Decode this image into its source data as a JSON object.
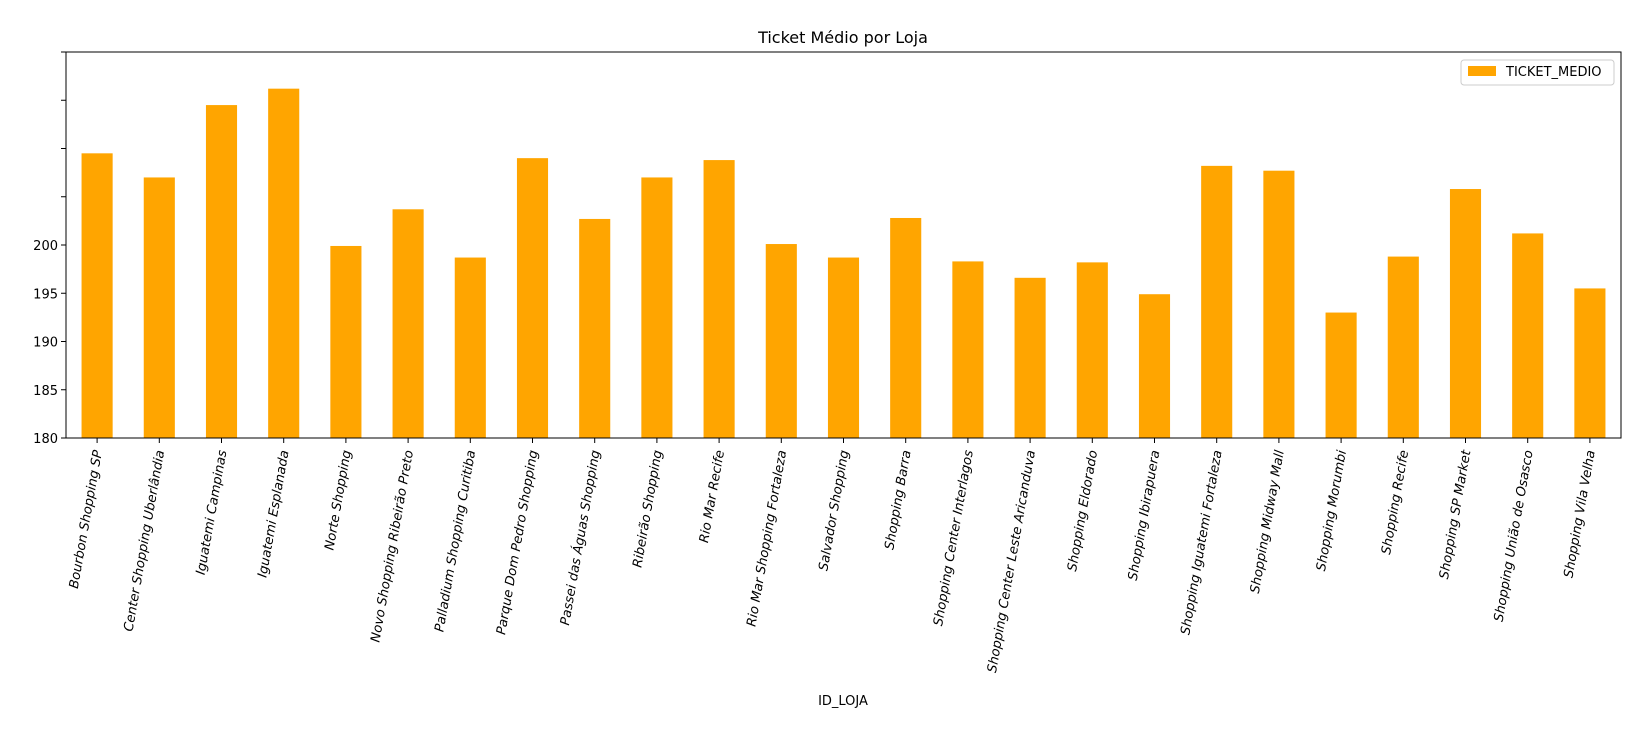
{
  "chart_data": {
    "type": "bar",
    "title": "Ticket Médio por Loja",
    "xlabel": "ID_LOJA",
    "ylabel": "",
    "ylim": [
      180,
      220
    ],
    "yticks": [
      180,
      185,
      190,
      195,
      200
    ],
    "yticks_unlabeled": [
      205,
      210,
      215,
      220
    ],
    "grid": false,
    "legend_position": "top-right",
    "bar_color": "#FFA500",
    "categories": [
      "Bourbon Shopping SP",
      "Center Shopping Uberlândia",
      "Iguatemi Campinas",
      "Iguatemi Esplanada",
      "Norte Shopping",
      "Novo Shopping Ribeirão Preto",
      "Palladium Shopping Curitiba",
      "Parque Dom Pedro Shopping",
      "Passei das Águas Shopping",
      "Ribeirão Shopping",
      "Rio Mar Recife",
      "Rio Mar Shopping Fortaleza",
      "Salvador Shopping",
      "Shopping Barra",
      "Shopping Center Interlagos",
      "Shopping Center Leste Aricanduva",
      "Shopping Eldorado",
      "Shopping Ibirapuera",
      "Shopping Iguatemi Fortaleza",
      "Shopping Midway Mall",
      "Shopping Morumbi",
      "Shopping Recife",
      "Shopping SP Market",
      "Shopping União de Osasco",
      "Shopping Vila Velha"
    ],
    "series": [
      {
        "name": "TICKET_MEDIO",
        "values": [
          209.5,
          207.0,
          214.5,
          216.2,
          199.9,
          203.7,
          198.7,
          209.0,
          202.7,
          207.0,
          208.8,
          200.1,
          198.7,
          202.8,
          198.3,
          196.6,
          198.2,
          194.9,
          208.2,
          207.7,
          193.0,
          198.8,
          205.8,
          201.2,
          195.5
        ]
      }
    ]
  }
}
